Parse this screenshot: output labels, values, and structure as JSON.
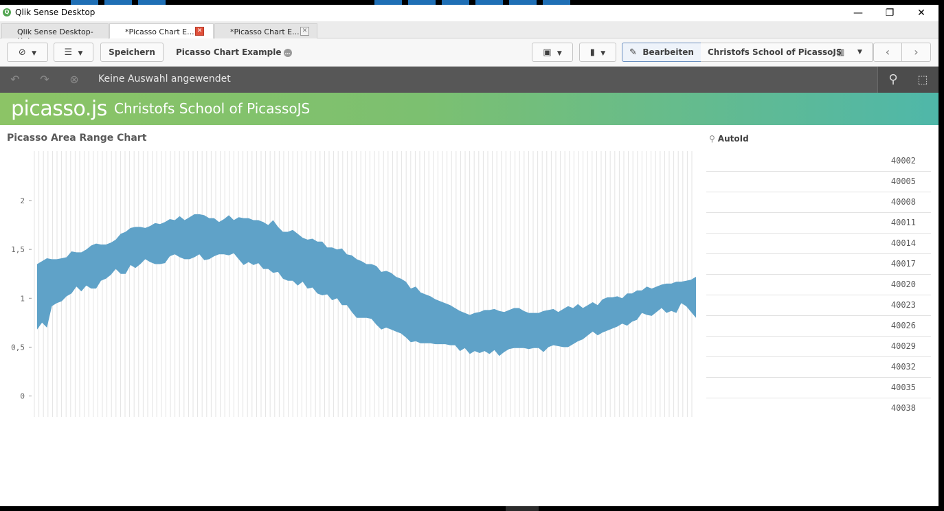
{
  "window": {
    "title": "Qlik Sense Desktop",
    "minimize": "—",
    "restore": "❐",
    "close": "✕"
  },
  "tabs": [
    {
      "label": "Qlik Sense Desktop-Hub"
    },
    {
      "label": "*Picasso Chart E...",
      "close": "✕"
    },
    {
      "label": "*Picasso Chart E...",
      "close": "✕"
    }
  ],
  "toolbar": {
    "save_label": "Speichern",
    "app_name": "Picasso Chart Example",
    "edit_label": "Bearbeiten",
    "sheet_name": "Christofs School of PicassoJS"
  },
  "selections": {
    "text": "Keine Auswahl angewendet"
  },
  "banner": {
    "logo": "picasso.js",
    "title": "Christofs School of PicassoJS"
  },
  "chart_data": {
    "type": "area",
    "title": "Picasso Area Range Chart",
    "ylim": [
      -0.2,
      2.45
    ],
    "yticks": [
      {
        "v": 2,
        "label": "2"
      },
      {
        "v": 1.5,
        "label": "1,5"
      },
      {
        "v": 1,
        "label": "1"
      },
      {
        "v": 0.5,
        "label": "0,5"
      },
      {
        "v": 0,
        "label": "0"
      }
    ],
    "grid": "vertical",
    "series": [
      {
        "values_low": [
          0.68,
          0.75,
          0.7,
          0.92,
          0.95,
          0.97,
          1.02,
          1.05,
          1.12,
          1.07,
          1.13,
          1.1,
          1.1,
          1.18,
          1.2,
          1.24,
          1.3,
          1.25,
          1.25,
          1.34,
          1.31,
          1.35,
          1.4,
          1.37,
          1.35,
          1.35,
          1.36,
          1.43,
          1.45,
          1.42,
          1.4,
          1.4,
          1.42,
          1.45,
          1.39,
          1.4,
          1.43,
          1.45,
          1.45,
          1.44,
          1.46,
          1.4,
          1.34,
          1.37,
          1.34,
          1.36,
          1.3,
          1.3,
          1.26,
          1.27,
          1.2,
          1.18,
          1.18,
          1.13,
          1.17,
          1.1,
          1.11,
          1.05,
          1.03,
          1.04,
          0.98,
          1.0,
          0.93,
          0.93,
          0.86,
          0.8,
          0.8,
          0.8,
          0.79,
          0.73,
          0.68,
          0.7,
          0.68,
          0.66,
          0.64,
          0.6,
          0.55,
          0.56,
          0.54,
          0.54,
          0.54,
          0.53,
          0.53,
          0.53,
          0.52,
          0.52,
          0.46,
          0.49,
          0.43,
          0.46,
          0.44,
          0.46,
          0.43,
          0.47,
          0.41,
          0.45,
          0.48,
          0.49,
          0.49,
          0.49,
          0.48,
          0.49,
          0.49,
          0.45,
          0.5,
          0.52,
          0.51,
          0.5,
          0.5,
          0.53,
          0.56,
          0.58,
          0.62,
          0.66,
          0.62,
          0.65,
          0.67,
          0.69,
          0.71,
          0.74,
          0.72,
          0.76,
          0.78,
          0.85,
          0.83,
          0.82,
          0.86,
          0.9,
          0.85,
          0.87,
          0.85,
          0.95,
          0.92,
          0.86,
          0.8
        ],
        "values_high": [
          1.35,
          1.38,
          1.41,
          1.4,
          1.4,
          1.41,
          1.42,
          1.48,
          1.47,
          1.47,
          1.5,
          1.54,
          1.56,
          1.55,
          1.55,
          1.57,
          1.6,
          1.66,
          1.68,
          1.72,
          1.73,
          1.73,
          1.72,
          1.74,
          1.77,
          1.76,
          1.78,
          1.81,
          1.8,
          1.84,
          1.8,
          1.83,
          1.86,
          1.86,
          1.85,
          1.82,
          1.82,
          1.78,
          1.81,
          1.85,
          1.8,
          1.83,
          1.82,
          1.82,
          1.8,
          1.8,
          1.78,
          1.75,
          1.8,
          1.73,
          1.68,
          1.68,
          1.7,
          1.66,
          1.62,
          1.6,
          1.61,
          1.58,
          1.58,
          1.52,
          1.52,
          1.5,
          1.51,
          1.45,
          1.44,
          1.4,
          1.38,
          1.35,
          1.35,
          1.33,
          1.27,
          1.28,
          1.26,
          1.22,
          1.2,
          1.17,
          1.1,
          1.12,
          1.06,
          1.04,
          1.02,
          0.99,
          0.97,
          0.95,
          0.93,
          0.9,
          0.87,
          0.85,
          0.83,
          0.85,
          0.86,
          0.88,
          0.88,
          0.89,
          0.87,
          0.86,
          0.88,
          0.9,
          0.9,
          0.87,
          0.85,
          0.85,
          0.85,
          0.87,
          0.88,
          0.89,
          0.86,
          0.89,
          0.92,
          0.9,
          0.94,
          0.9,
          0.93,
          0.96,
          0.93,
          0.99,
          1.01,
          1.01,
          1.02,
          1.0,
          1.05,
          1.05,
          1.08,
          1.08,
          1.12,
          1.1,
          1.12,
          1.14,
          1.15,
          1.15,
          1.17,
          1.17,
          1.18,
          1.19,
          1.22
        ],
        "color": "#5fa2c8"
      }
    ]
  },
  "listbox": {
    "title": "AutoId",
    "items": [
      "40002",
      "40005",
      "40008",
      "40011",
      "40014",
      "40017",
      "40020",
      "40023",
      "40026",
      "40029",
      "40032",
      "40035",
      "40038"
    ]
  }
}
